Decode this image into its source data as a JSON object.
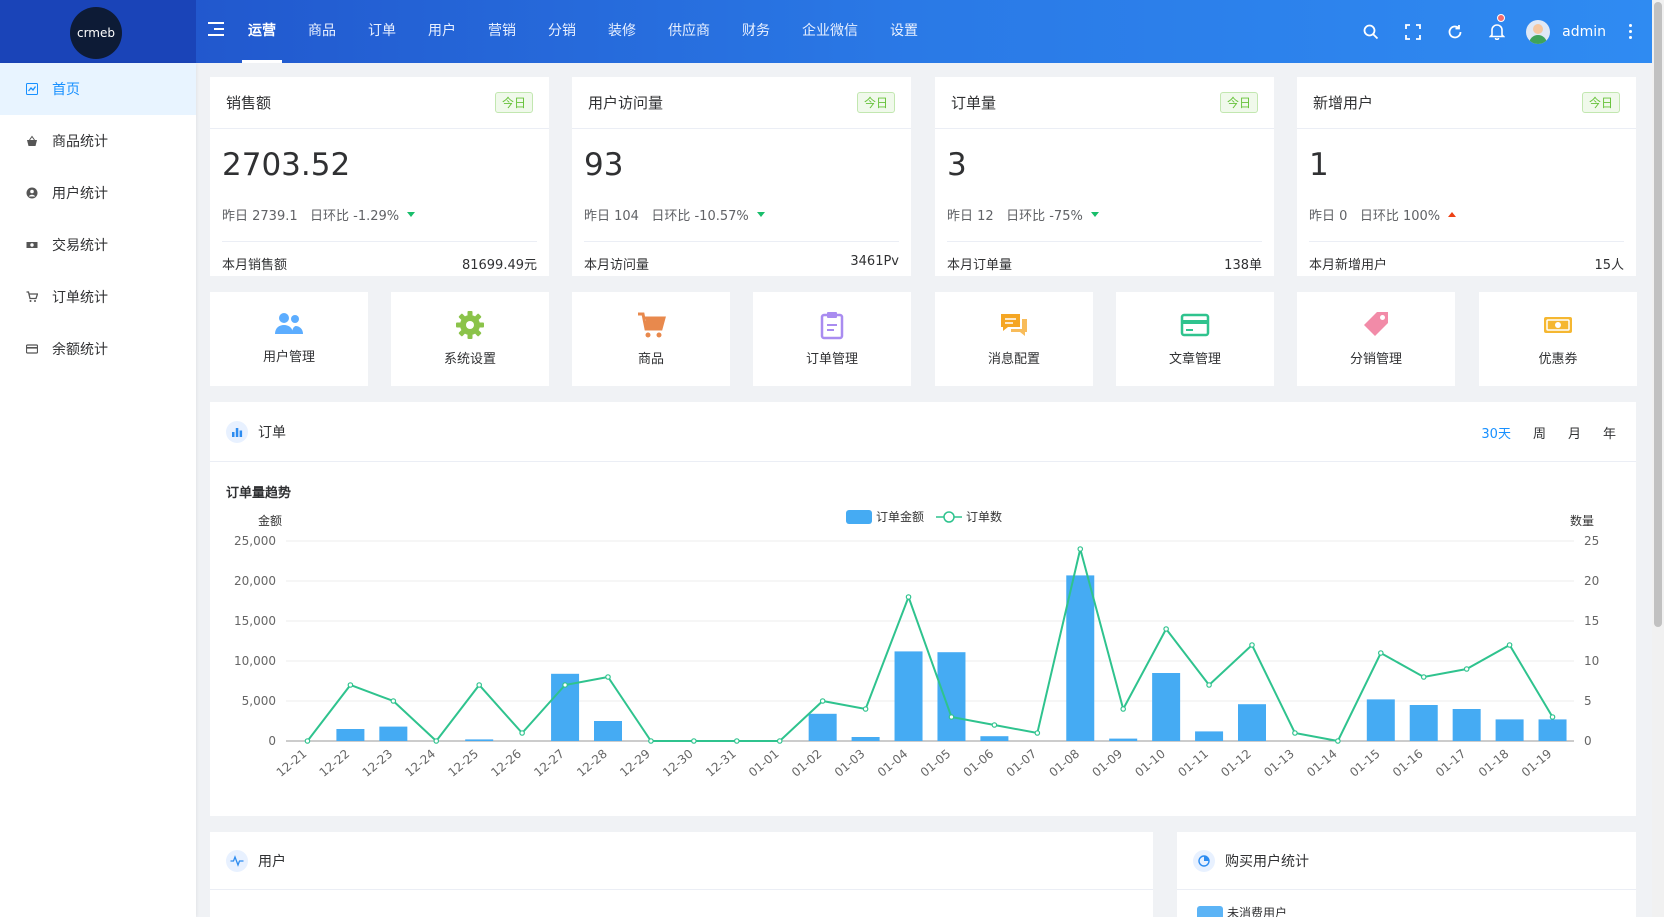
{
  "brand": {
    "logo_text": "crmeb"
  },
  "nav": [
    "运营",
    "商品",
    "订单",
    "用户",
    "营销",
    "分销",
    "装修",
    "供应商",
    "财务",
    "企业微信",
    "设置"
  ],
  "user": {
    "name": "admin"
  },
  "sidebar": {
    "items": [
      {
        "label": "首页",
        "icon": "dashboard-icon"
      },
      {
        "label": "商品统计",
        "icon": "basket-icon"
      },
      {
        "label": "用户统计",
        "icon": "user-circle-icon"
      },
      {
        "label": "交易统计",
        "icon": "money-icon"
      },
      {
        "label": "订单统计",
        "icon": "cart-icon"
      },
      {
        "label": "余额统计",
        "icon": "card-icon"
      }
    ]
  },
  "stats": [
    {
      "title": "销售额",
      "tag": "今日",
      "value": "2703.52",
      "yesterday": "昨日 2739.1",
      "ratio": "日环比 -1.29%",
      "trend": "down",
      "month_label": "本月销售额",
      "month_value": "81699.49元"
    },
    {
      "title": "用户访问量",
      "tag": "今日",
      "value": "93",
      "yesterday": "昨日 104",
      "ratio": "日环比 -10.57%",
      "trend": "down",
      "month_label": "本月访问量",
      "month_value": "3461Pv"
    },
    {
      "title": "订单量",
      "tag": "今日",
      "value": "3",
      "yesterday": "昨日 12",
      "ratio": "日环比 -75%",
      "trend": "down",
      "month_label": "本月订单量",
      "month_value": "138单"
    },
    {
      "title": "新增用户",
      "tag": "今日",
      "value": "1",
      "yesterday": "昨日 0",
      "ratio": "日环比 100%",
      "trend": "up",
      "month_label": "本月新增用户",
      "month_value": "15人"
    }
  ],
  "shortcuts": [
    {
      "label": "用户管理",
      "icon": "users-icon",
      "color": "#5cadff"
    },
    {
      "label": "系统设置",
      "icon": "gear-icon",
      "color": "#8bc34a"
    },
    {
      "label": "商品",
      "icon": "cart-icon",
      "color": "#e8894d"
    },
    {
      "label": "订单管理",
      "icon": "clipboard-icon",
      "color": "#a98cf0"
    },
    {
      "label": "消息配置",
      "icon": "chat-icon",
      "color": "#f5a623"
    },
    {
      "label": "文章管理",
      "icon": "card-icon",
      "color": "#2fc38e"
    },
    {
      "label": "分销管理",
      "icon": "tag-icon",
      "color": "#f28ba8"
    },
    {
      "label": "优惠券",
      "icon": "ticket-icon",
      "color": "#f5b731"
    }
  ],
  "order_panel": {
    "title": "订单",
    "subtitle": "订单量趋势",
    "ranges": [
      "30天",
      "周",
      "月",
      "年"
    ],
    "active_range": "30天"
  },
  "user_panel": {
    "title": "用户"
  },
  "buy_panel": {
    "title": "购买用户统计",
    "legend_first": "未消费用户"
  },
  "chart_data": {
    "type": "bar",
    "title": "订单量趋势",
    "categories": [
      "12-21",
      "12-22",
      "12-23",
      "12-24",
      "12-25",
      "12-26",
      "12-27",
      "12-28",
      "12-29",
      "12-30",
      "12-31",
      "01-01",
      "01-02",
      "01-03",
      "01-04",
      "01-05",
      "01-06",
      "01-07",
      "01-08",
      "01-09",
      "01-10",
      "01-11",
      "01-12",
      "01-13",
      "01-14",
      "01-15",
      "01-16",
      "01-17",
      "01-18",
      "01-19"
    ],
    "series": [
      {
        "name": "订单金额",
        "type": "bar",
        "axis": "left",
        "color": "#4fb3f6",
        "values": [
          0,
          1500,
          1800,
          0,
          200,
          0,
          8400,
          2500,
          0,
          0,
          0,
          0,
          3400,
          500,
          11200,
          11100,
          600,
          0,
          20700,
          300,
          8500,
          1200,
          4600,
          0,
          0,
          5200,
          4500,
          4000,
          2700,
          2700
        ]
      },
      {
        "name": "订单数",
        "type": "line",
        "axis": "right",
        "color": "#2fc38e",
        "values": [
          0,
          7,
          5,
          0,
          7,
          1,
          7,
          8,
          0,
          0,
          0,
          0,
          5,
          4,
          18,
          3,
          2,
          1,
          24,
          4,
          14,
          7,
          12,
          1,
          0,
          11,
          8,
          9,
          12,
          3
        ]
      }
    ],
    "ylabel_left": "金额",
    "ylabel_right": "数量",
    "ylim_left": [
      0,
      25000
    ],
    "yticks_left": [
      "0",
      "5,000",
      "10,000",
      "15,000",
      "20,000",
      "25,000"
    ],
    "ylim_right": [
      0,
      25
    ],
    "yticks_right": [
      "0",
      "5",
      "10",
      "15",
      "20",
      "25"
    ],
    "legend_position": "top-center",
    "grid": true
  }
}
